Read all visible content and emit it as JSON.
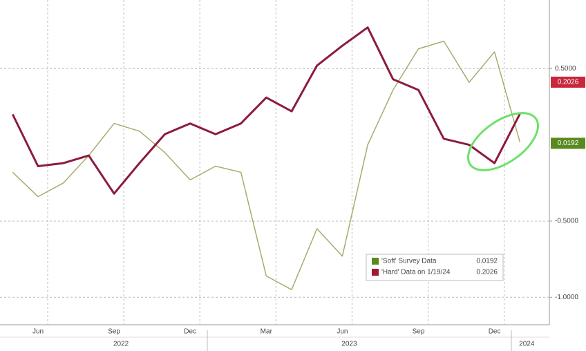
{
  "chart_data": {
    "type": "line",
    "x": [
      "2022-05",
      "2022-06",
      "2022-07",
      "2022-08",
      "2022-09",
      "2022-10",
      "2022-11",
      "2022-12",
      "2023-01",
      "2023-02",
      "2023-03",
      "2023-04",
      "2023-05",
      "2023-06",
      "2023-07",
      "2023-08",
      "2023-09",
      "2023-10",
      "2023-11",
      "2023-12",
      "2024-01"
    ],
    "series": [
      {
        "name": "'Soft' Survey Data",
        "legend_value": "0.0192",
        "color": "#a8ab6e",
        "values": [
          -0.18,
          -0.34,
          -0.25,
          -0.07,
          0.14,
          0.09,
          -0.05,
          -0.23,
          -0.14,
          -0.18,
          -0.86,
          -0.95,
          -0.55,
          -0.73,
          0.0,
          0.36,
          0.63,
          0.68,
          0.41,
          0.61,
          0.0192
        ]
      },
      {
        "name": "'Hard' Data on 1/19/24",
        "legend_value": "0.2026",
        "color": "#8c1c3c",
        "values": [
          0.2,
          -0.14,
          -0.12,
          -0.07,
          -0.32,
          -0.12,
          0.07,
          0.14,
          0.07,
          0.14,
          0.31,
          0.22,
          0.52,
          0.65,
          0.77,
          0.43,
          0.36,
          0.04,
          0.0,
          -0.12,
          0.2026
        ]
      }
    ],
    "ylim": [
      -1.18,
      0.95
    ],
    "yticks": [
      {
        "value": 0.5,
        "label": "0.5000"
      },
      {
        "value": -0.5,
        "label": "-0.5000"
      },
      {
        "value": -1,
        "label": "-1.0000"
      }
    ],
    "xticks": [
      {
        "value": "2022-06",
        "label": "Jun"
      },
      {
        "value": "2022-09",
        "label": "Sep"
      },
      {
        "value": "2022-12",
        "label": "Dec"
      },
      {
        "value": "2023-03",
        "label": "Mar"
      },
      {
        "value": "2023-06",
        "label": "Jun"
      },
      {
        "value": "2023-09",
        "label": "Sep"
      },
      {
        "value": "2023-12",
        "label": "Dec"
      }
    ],
    "year_ticks": [
      {
        "value": "2022-09",
        "label": "2022"
      },
      {
        "value": "2023-06",
        "label": "2023"
      },
      {
        "value": "2024-01",
        "label": "2024"
      }
    ],
    "grid": true
  }
}
